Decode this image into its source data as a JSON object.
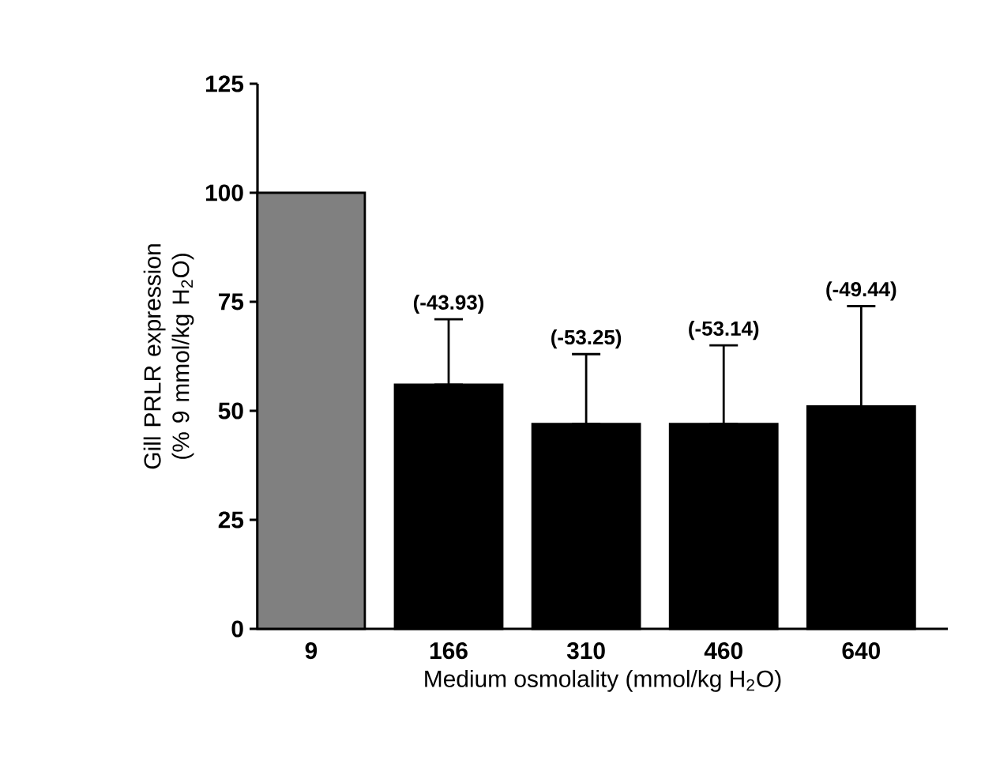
{
  "chart_data": {
    "type": "bar",
    "xlabel": "Medium osmolality (mmol/kg H$_{2}$O)",
    "ylabel": "Gill PRLR expression (% 9 mmol/kg H$_{2}$O)",
    "categories": [
      "9",
      "166",
      "310",
      "460",
      "640"
    ],
    "values": [
      100,
      56,
      47,
      47,
      51
    ],
    "colors": [
      "#808080",
      "#000000",
      "#000000",
      "#000000",
      "#000000"
    ],
    "errors": [
      null,
      [
        56,
        71
      ],
      [
        47,
        63
      ],
      [
        47,
        65
      ],
      [
        51,
        74
      ]
    ],
    "annotations": [
      {
        "text": "(-43.93)",
        "x": "166",
        "y": 71
      },
      {
        "text": "(-53.25)",
        "x": "310",
        "y": 63
      },
      {
        "text": "(-53.14)",
        "x": "460",
        "y": 65
      },
      {
        "text": "(-49.44)",
        "x": "640",
        "y": 74
      }
    ],
    "ylim": [
      0,
      125
    ],
    "yticks": [
      0,
      25,
      50,
      75,
      100,
      125
    ]
  }
}
